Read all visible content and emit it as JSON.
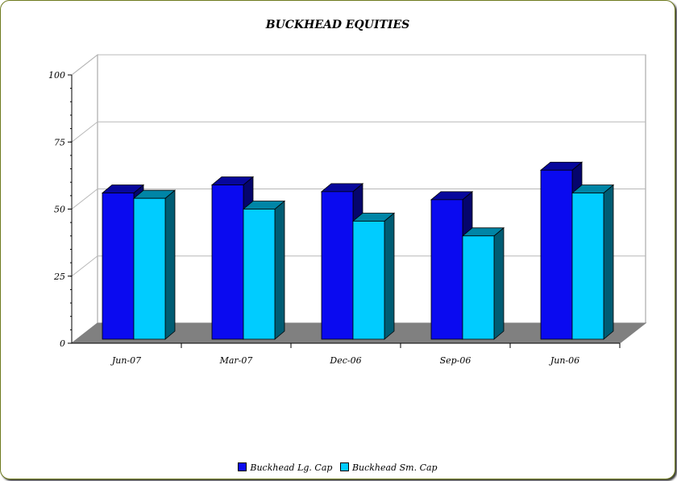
{
  "chart_data": {
    "type": "bar",
    "title": "BUCKHEAD EQUITIES",
    "categories": [
      "Jun-07",
      "Mar-07",
      "Dec-06",
      "Sep-06",
      "Jun-06"
    ],
    "series": [
      {
        "name": "Buckhead Lg. Cap",
        "color": "#0a0af0",
        "values": [
          56,
          59,
          56.5,
          53.5,
          64.5
        ]
      },
      {
        "name": "Buckhead Sm. Cap",
        "color": "#00ccff",
        "values": [
          54,
          50,
          45.5,
          40,
          56
        ]
      }
    ],
    "y_ticks": [
      "0",
      "25",
      "50",
      "75",
      "100"
    ],
    "ylim": [
      0,
      100
    ],
    "grid": true,
    "legend_position": "bottom"
  }
}
